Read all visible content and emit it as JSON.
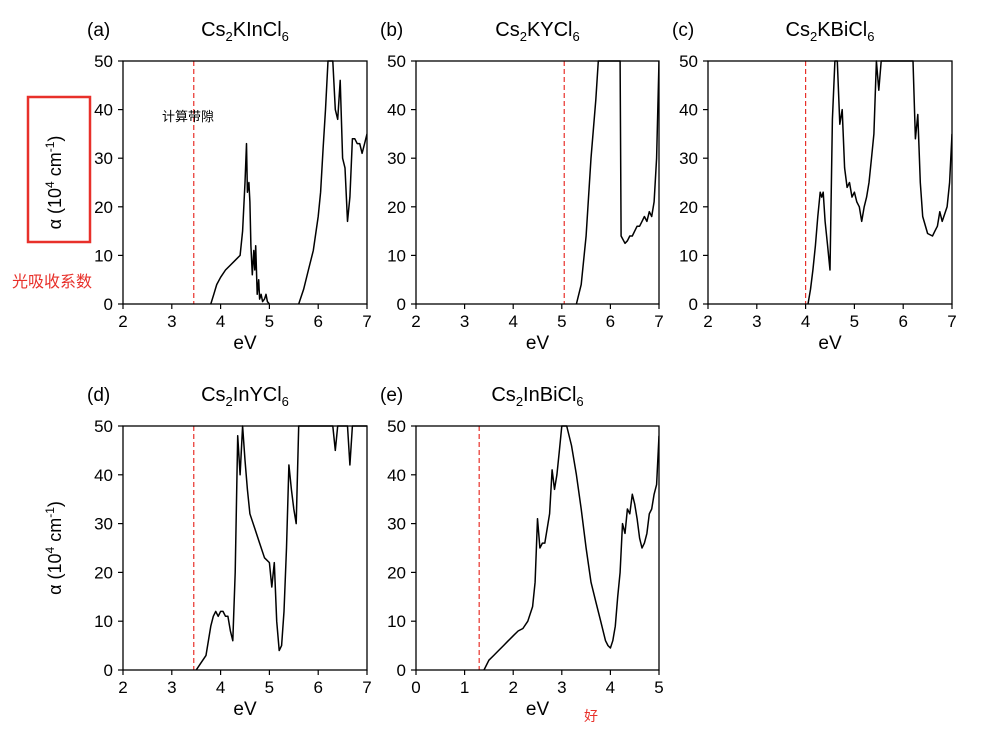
{
  "annotations": {
    "calc_gap": "计算带隙",
    "absorption_coef": "光吸收系数",
    "good": "好",
    "highlight_color": "#e8302a"
  },
  "chart_data": [
    {
      "type": "line",
      "panel": "(a)",
      "title": {
        "base": "Cs",
        "s1": "2",
        "mid": "KInCl",
        "s2": "6"
      },
      "xlabel": "eV",
      "ylabel": {
        "pre": "α (10",
        "sup1": "4",
        "mid": " cm",
        "sup2": "-1",
        "post": ")"
      },
      "xlim": [
        2,
        7
      ],
      "ylim": [
        0,
        50
      ],
      "xticks": [
        2,
        3,
        4,
        5,
        6,
        7
      ],
      "yticks": [
        0,
        10,
        20,
        30,
        40,
        50
      ],
      "gap": 3.45,
      "series": [
        {
          "x": [
            3.8,
            3.86,
            3.92,
            4.0,
            4.1,
            4.2,
            4.3,
            4.4,
            4.45,
            4.5,
            4.53,
            4.55,
            4.58,
            4.6,
            4.62,
            4.65,
            4.68,
            4.7,
            4.72,
            4.75,
            4.78,
            4.8,
            4.83,
            4.86,
            4.9,
            4.93,
            4.96,
            5.0
          ],
          "y": [
            0,
            2,
            4,
            5.5,
            7,
            8,
            9,
            10,
            15,
            25,
            33,
            23,
            25,
            21,
            12,
            6,
            11,
            7,
            12,
            2,
            5,
            1,
            2,
            0.5,
            1,
            2,
            0.5,
            0
          ]
        },
        {
          "x": [
            5.6,
            5.7,
            5.8,
            5.9,
            6.0,
            6.05,
            6.1,
            6.15,
            6.2,
            6.25,
            6.3,
            6.35,
            6.4,
            6.45,
            6.5,
            6.55,
            6.6,
            6.65,
            6.7,
            6.75,
            6.8,
            6.85,
            6.9,
            6.95,
            7.0
          ],
          "y": [
            0,
            3,
            7,
            11,
            18,
            23,
            32,
            40,
            50,
            50,
            50,
            40,
            38,
            46,
            30,
            28,
            17,
            22,
            34,
            34,
            33,
            33,
            31,
            33,
            35
          ]
        }
      ]
    },
    {
      "type": "line",
      "panel": "(b)",
      "title": {
        "base": "Cs",
        "s1": "2",
        "mid": "KYCl",
        "s2": "6"
      },
      "xlabel": "eV",
      "ylabel": null,
      "xlim": [
        2,
        7
      ],
      "ylim": [
        0,
        50
      ],
      "xticks": [
        2,
        3,
        4,
        5,
        6,
        7
      ],
      "yticks": [
        0,
        10,
        20,
        30,
        40,
        50
      ],
      "gap": 5.05,
      "series": [
        {
          "x": [
            5.3,
            5.4,
            5.5,
            5.6,
            5.7,
            5.75,
            5.8,
            6.2,
            6.22,
            6.3,
            6.35,
            6.4,
            6.45,
            6.5,
            6.55,
            6.6,
            6.65,
            6.7,
            6.75,
            6.8,
            6.85,
            6.9,
            6.95,
            7.0
          ],
          "y": [
            0,
            4,
            14,
            30,
            42,
            50,
            50,
            50,
            14,
            12.5,
            13,
            14,
            14,
            15,
            16,
            16,
            17,
            18,
            17,
            19,
            18,
            21,
            30,
            50
          ]
        }
      ]
    },
    {
      "type": "line",
      "panel": "(c)",
      "title": {
        "base": "Cs",
        "s1": "2",
        "mid": "KBiCl",
        "s2": "6"
      },
      "xlabel": "eV",
      "ylabel": null,
      "xlim": [
        2,
        7
      ],
      "ylim": [
        0,
        50
      ],
      "xticks": [
        2,
        3,
        4,
        5,
        6,
        7
      ],
      "yticks": [
        0,
        10,
        20,
        30,
        40,
        50
      ],
      "gap": 4.0,
      "series": [
        {
          "x": [
            4.05,
            4.1,
            4.15,
            4.2,
            4.25,
            4.3,
            4.33,
            4.36,
            4.4,
            4.45,
            4.5,
            4.55,
            4.6,
            4.62,
            4.65,
            4.7,
            4.75,
            4.8,
            4.85,
            4.9,
            4.95,
            5.0,
            5.05,
            5.1,
            5.15,
            5.2,
            5.25,
            5.3,
            5.35,
            5.4,
            5.45,
            5.5,
            5.55,
            5.6,
            5.65,
            5.7,
            5.75,
            5.8,
            5.85,
            5.9,
            5.95,
            6.0,
            6.05,
            6.1,
            6.15,
            6.2,
            6.25,
            6.3,
            6.35,
            6.4,
            6.5,
            6.6,
            6.65,
            6.7,
            6.75,
            6.8,
            6.9,
            6.95,
            7.0
          ],
          "y": [
            0,
            3,
            7,
            12,
            18,
            23,
            22,
            23,
            17,
            12,
            7,
            38,
            50,
            50,
            50,
            37,
            40,
            28,
            24,
            25,
            22,
            23,
            21,
            20,
            17,
            20,
            22,
            25,
            30,
            35,
            50,
            44,
            50,
            50,
            50,
            50,
            50,
            50,
            50,
            50,
            50,
            50,
            50,
            50,
            50,
            50,
            34,
            39,
            25,
            18,
            14.5,
            14,
            15,
            16,
            19,
            17,
            20,
            25,
            35
          ]
        }
      ]
    },
    {
      "type": "line",
      "panel": "(d)",
      "title": {
        "base": "Cs",
        "s1": "2",
        "mid": "InYCl",
        "s2": "6"
      },
      "xlabel": "eV",
      "ylabel": {
        "pre": "α (10",
        "sup1": "4",
        "mid": " cm",
        "sup2": "-1",
        "post": ")"
      },
      "xlim": [
        2,
        7
      ],
      "ylim": [
        0,
        50
      ],
      "xticks": [
        2,
        3,
        4,
        5,
        6,
        7
      ],
      "yticks": [
        0,
        10,
        20,
        30,
        40,
        50
      ],
      "gap": 3.45,
      "series": [
        {
          "x": [
            3.5,
            3.6,
            3.7,
            3.75,
            3.8,
            3.85,
            3.9,
            3.95,
            4.0,
            4.05,
            4.1,
            4.15,
            4.2,
            4.25,
            4.3,
            4.35,
            4.4,
            4.45,
            4.5,
            4.55,
            4.6,
            4.7,
            4.8,
            4.9,
            5.0,
            5.05,
            5.1,
            5.15,
            5.2,
            5.25,
            5.3,
            5.35,
            5.4,
            5.45,
            5.5,
            5.55,
            5.6,
            5.65,
            5.7,
            5.75,
            5.8,
            6.0,
            6.2,
            6.3,
            6.35,
            6.4,
            6.5,
            6.6,
            6.65,
            6.7,
            6.75,
            7.0
          ],
          "y": [
            0,
            1.5,
            3,
            6,
            9,
            11,
            12,
            11,
            12,
            12,
            11,
            11,
            8,
            6,
            20,
            48,
            40,
            50,
            43,
            37,
            32,
            29,
            26,
            23,
            22,
            17,
            22,
            10,
            4,
            5,
            12,
            25,
            42,
            37,
            33,
            30,
            50,
            50,
            50,
            50,
            50,
            50,
            50,
            50,
            45,
            50,
            50,
            50,
            42,
            50,
            50,
            50
          ]
        }
      ]
    },
    {
      "type": "line",
      "panel": "(e)",
      "title": {
        "base": "Cs",
        "s1": "2",
        "mid": "InBiCl",
        "s2": "6"
      },
      "xlabel": "eV",
      "ylabel": null,
      "xlim": [
        0,
        5
      ],
      "ylim": [
        0,
        50
      ],
      "xticks": [
        0,
        1,
        2,
        3,
        4,
        5
      ],
      "yticks": [
        0,
        10,
        20,
        30,
        40,
        50
      ],
      "gap": 1.3,
      "series": [
        {
          "x": [
            1.4,
            1.5,
            1.6,
            1.7,
            1.8,
            1.9,
            2.0,
            2.1,
            2.2,
            2.3,
            2.4,
            2.45,
            2.5,
            2.55,
            2.6,
            2.65,
            2.7,
            2.75,
            2.8,
            2.85,
            2.9,
            2.95,
            3.0,
            3.05,
            3.1,
            3.2,
            3.3,
            3.4,
            3.5,
            3.6,
            3.7,
            3.8,
            3.9,
            3.95,
            4.0,
            4.05,
            4.1,
            4.15,
            4.2,
            4.25,
            4.3,
            4.35,
            4.4,
            4.45,
            4.5,
            4.55,
            4.6,
            4.65,
            4.7,
            4.75,
            4.8,
            4.85,
            4.9,
            4.95,
            5.0
          ],
          "y": [
            0,
            2,
            3,
            4,
            5,
            6,
            7,
            8,
            8.5,
            10,
            13,
            18,
            31,
            25,
            26,
            26,
            29,
            32,
            41,
            37,
            40,
            45,
            50,
            50,
            50,
            46,
            40,
            33,
            25,
            18,
            14,
            10,
            6,
            5,
            4.5,
            6,
            9,
            15,
            20,
            30,
            28,
            33,
            32,
            36,
            34,
            31,
            27,
            25,
            26,
            28,
            32,
            33,
            36,
            38,
            48
          ]
        }
      ]
    }
  ]
}
